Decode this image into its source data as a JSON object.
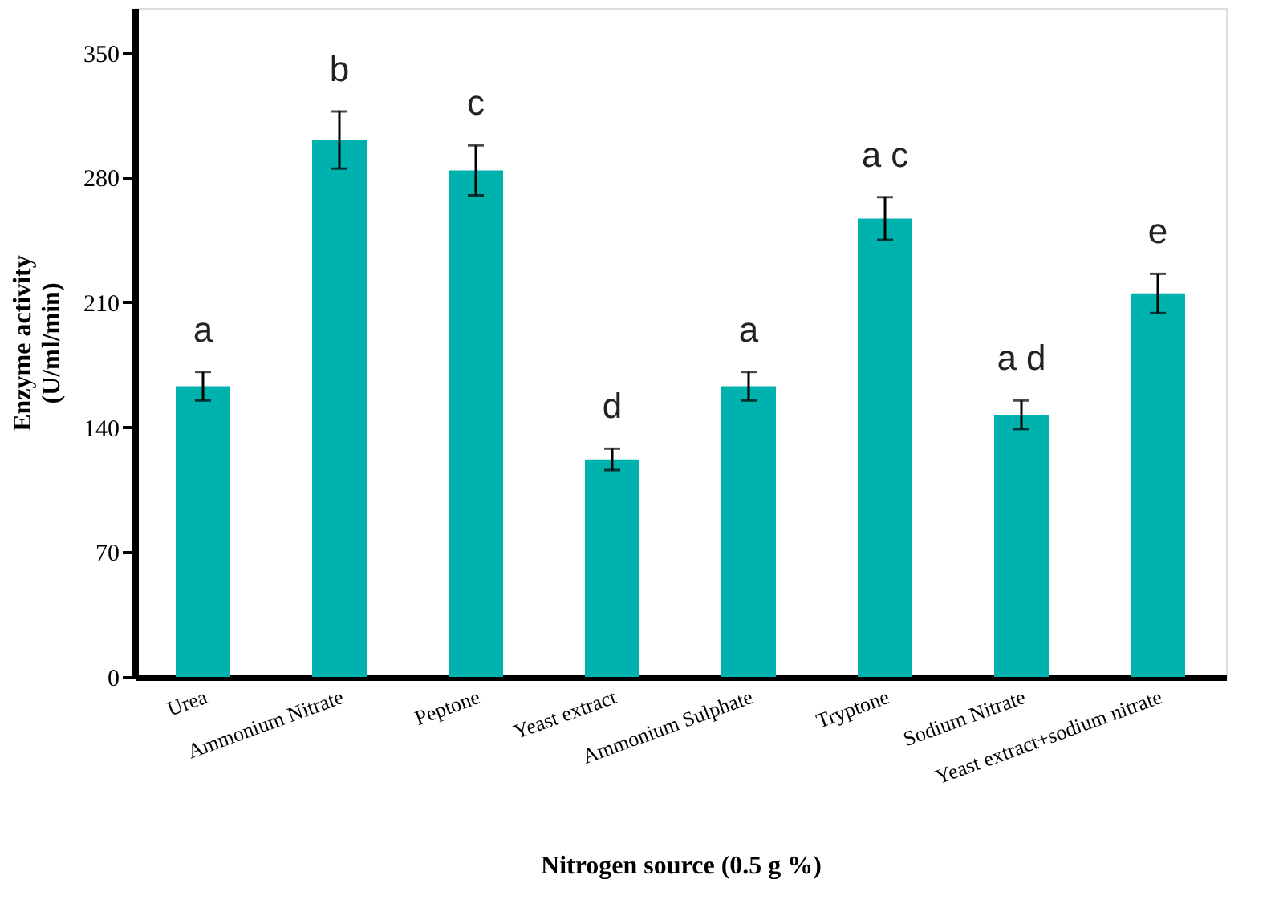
{
  "chart_data": {
    "type": "bar",
    "xlabel": "Nitrogen source (0.5 g %)",
    "ylabel": "Enzyme activity\n(U/ml/min)",
    "categories": [
      "Urea",
      "Ammonium Nitrate",
      "Peptone",
      "Yeast extract",
      "Ammonium Sulphate",
      "Tryptone",
      "Sodium Nitrate",
      "Yeast extract+sodium nitrate"
    ],
    "values": [
      163,
      301,
      284,
      122,
      163,
      257,
      147,
      215
    ],
    "errors": [
      8,
      16,
      14,
      6,
      8,
      12,
      8,
      11
    ],
    "color": "#00b2ad",
    "ylim": [
      0,
      375
    ],
    "yticks": [
      0,
      70,
      140,
      210,
      280,
      350
    ],
    "grid": false,
    "annotations": [
      "a",
      "b",
      "c",
      "d",
      "a",
      "a c",
      "a d",
      "e"
    ]
  }
}
